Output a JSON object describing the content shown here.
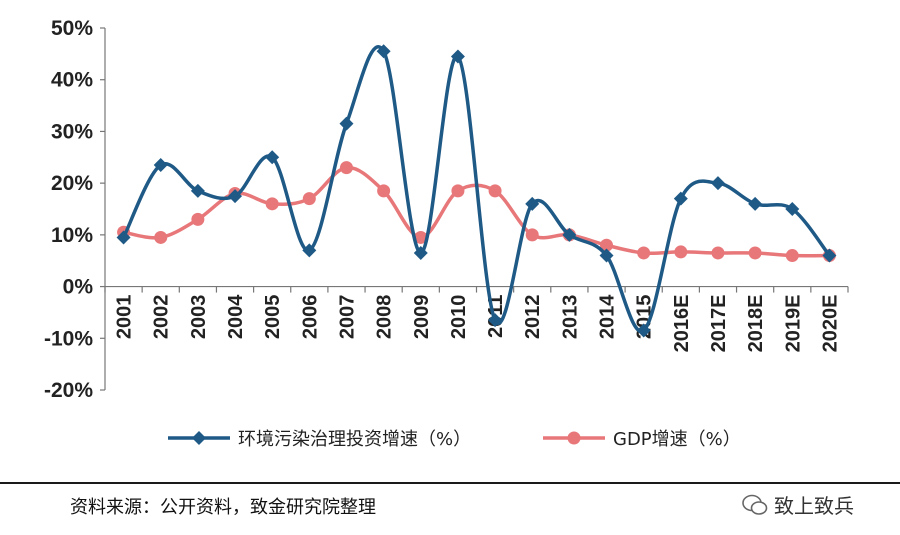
{
  "chart_data": {
    "type": "line",
    "categories": [
      "2001",
      "2002",
      "2003",
      "2004",
      "2005",
      "2006",
      "2007",
      "2008",
      "2009",
      "2010",
      "2011",
      "2012",
      "2013",
      "2014",
      "2015",
      "2016E",
      "2017E",
      "2018E",
      "2019E",
      "2020E"
    ],
    "series": [
      {
        "name": "环境污染治理投资增速（%）",
        "color": "#1f5a87",
        "marker": "diamond",
        "values": [
          9.5,
          23.5,
          18.5,
          17.5,
          25,
          7,
          31.5,
          45.5,
          6.5,
          44.5,
          -6.5,
          16,
          10,
          6,
          -8.5,
          17,
          20,
          16,
          15,
          6
        ]
      },
      {
        "name": "GDP增速（%）",
        "color": "#e8777a",
        "marker": "circle",
        "values": [
          10.5,
          9.5,
          13,
          18,
          16,
          17,
          23,
          18.5,
          9.5,
          18.5,
          18.5,
          10,
          10,
          8,
          6.5,
          6.7,
          6.5,
          6.5,
          6,
          6
        ]
      }
    ],
    "yticks": [
      "50%",
      "40%",
      "30%",
      "20%",
      "10%",
      "0%",
      "-10%",
      "-20%"
    ],
    "ylim": [
      -20,
      50
    ],
    "grid": false,
    "legend_position": "bottom"
  },
  "footer": {
    "source": "资料来源：公开资料，致金研究院整理",
    "watermark": "致上致兵"
  }
}
